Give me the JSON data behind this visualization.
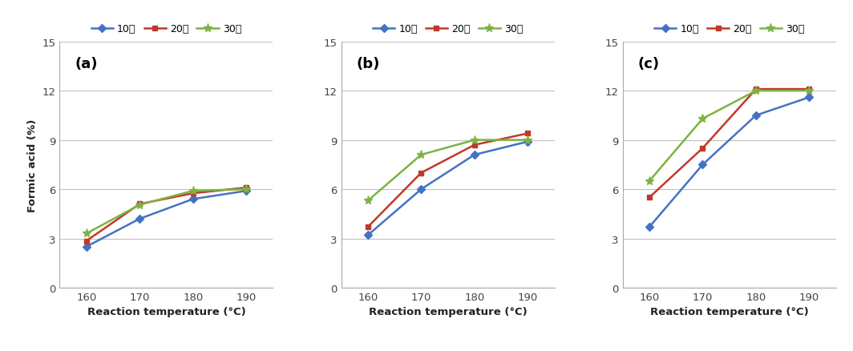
{
  "subplots": [
    {
      "label": "(a)",
      "data": {
        "10min": [
          2.5,
          4.2,
          5.4,
          5.9
        ],
        "20min": [
          2.85,
          5.1,
          5.75,
          6.1
        ],
        "30min": [
          3.3,
          5.05,
          5.9,
          6.0
        ]
      }
    },
    {
      "label": "(b)",
      "data": {
        "10min": [
          3.2,
          6.0,
          8.1,
          8.9
        ],
        "20min": [
          3.7,
          7.0,
          8.7,
          9.4
        ],
        "30min": [
          5.3,
          8.1,
          9.0,
          9.0
        ]
      }
    },
    {
      "label": "(c)",
      "data": {
        "10min": [
          3.7,
          7.5,
          10.5,
          11.6
        ],
        "20min": [
          5.5,
          8.5,
          12.1,
          12.1
        ],
        "30min": [
          6.5,
          10.3,
          12.0,
          12.0
        ]
      }
    }
  ],
  "x": [
    160,
    170,
    180,
    190
  ],
  "ylim": [
    0,
    15
  ],
  "yticks": [
    0,
    3,
    6,
    9,
    12,
    15
  ],
  "xlabel": "Reaction temperature (°C)",
  "ylabel": "Formic acid (%)",
  "legend_labels": [
    "10분",
    "20분",
    "30분"
  ],
  "colors": [
    "#4472c4",
    "#c0392b",
    "#7cb342"
  ],
  "markers": [
    "D",
    "s",
    "*"
  ],
  "marker_sizes": [
    5,
    5,
    8
  ],
  "line_width": 1.8,
  "grid_color": "#c0c0c0",
  "background_color": "#ffffff"
}
